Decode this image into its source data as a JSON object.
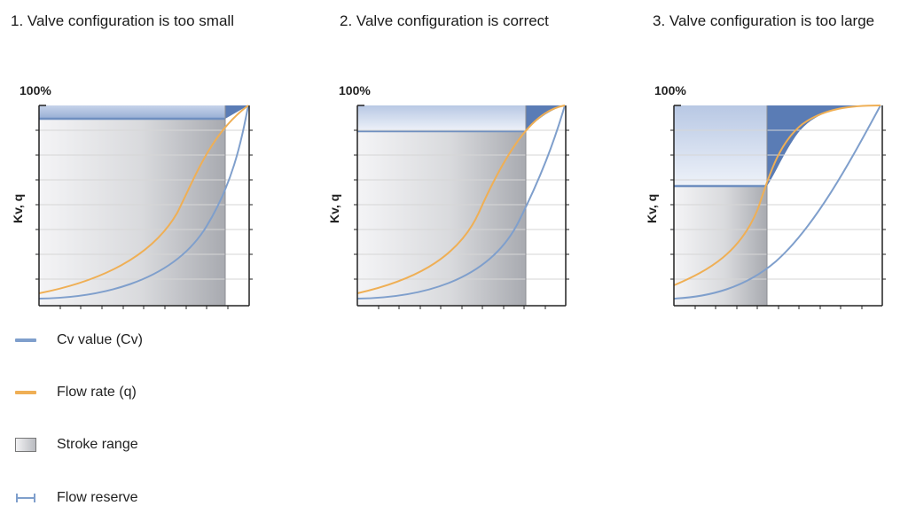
{
  "panels": [
    {
      "title": "1. Valve configuration is too small",
      "y_max_label": "100%",
      "y_axis_label": "Kv, q"
    },
    {
      "title": "2. Valve configuration is correct",
      "y_max_label": "100%",
      "y_axis_label": "Kv, q"
    },
    {
      "title": "3. Valve configuration is too large",
      "y_max_label": "100%",
      "y_axis_label": "Kv, q"
    }
  ],
  "legend": [
    {
      "label": "Cv value (Cv)",
      "icon": "cv-line-icon"
    },
    {
      "label": "Flow rate (q)",
      "icon": "flow-line-icon"
    },
    {
      "label": "Stroke range",
      "icon": "stroke-range-box-icon"
    },
    {
      "label": "Flow reserve",
      "icon": "flow-reserve-bracket-icon"
    }
  ],
  "colors": {
    "cv_line": "#7f9fcc",
    "flow_line": "#efaf55",
    "reserve_fill": "#6f8fc0",
    "grid": "#d6d6d6",
    "axis": "#222222"
  }
}
